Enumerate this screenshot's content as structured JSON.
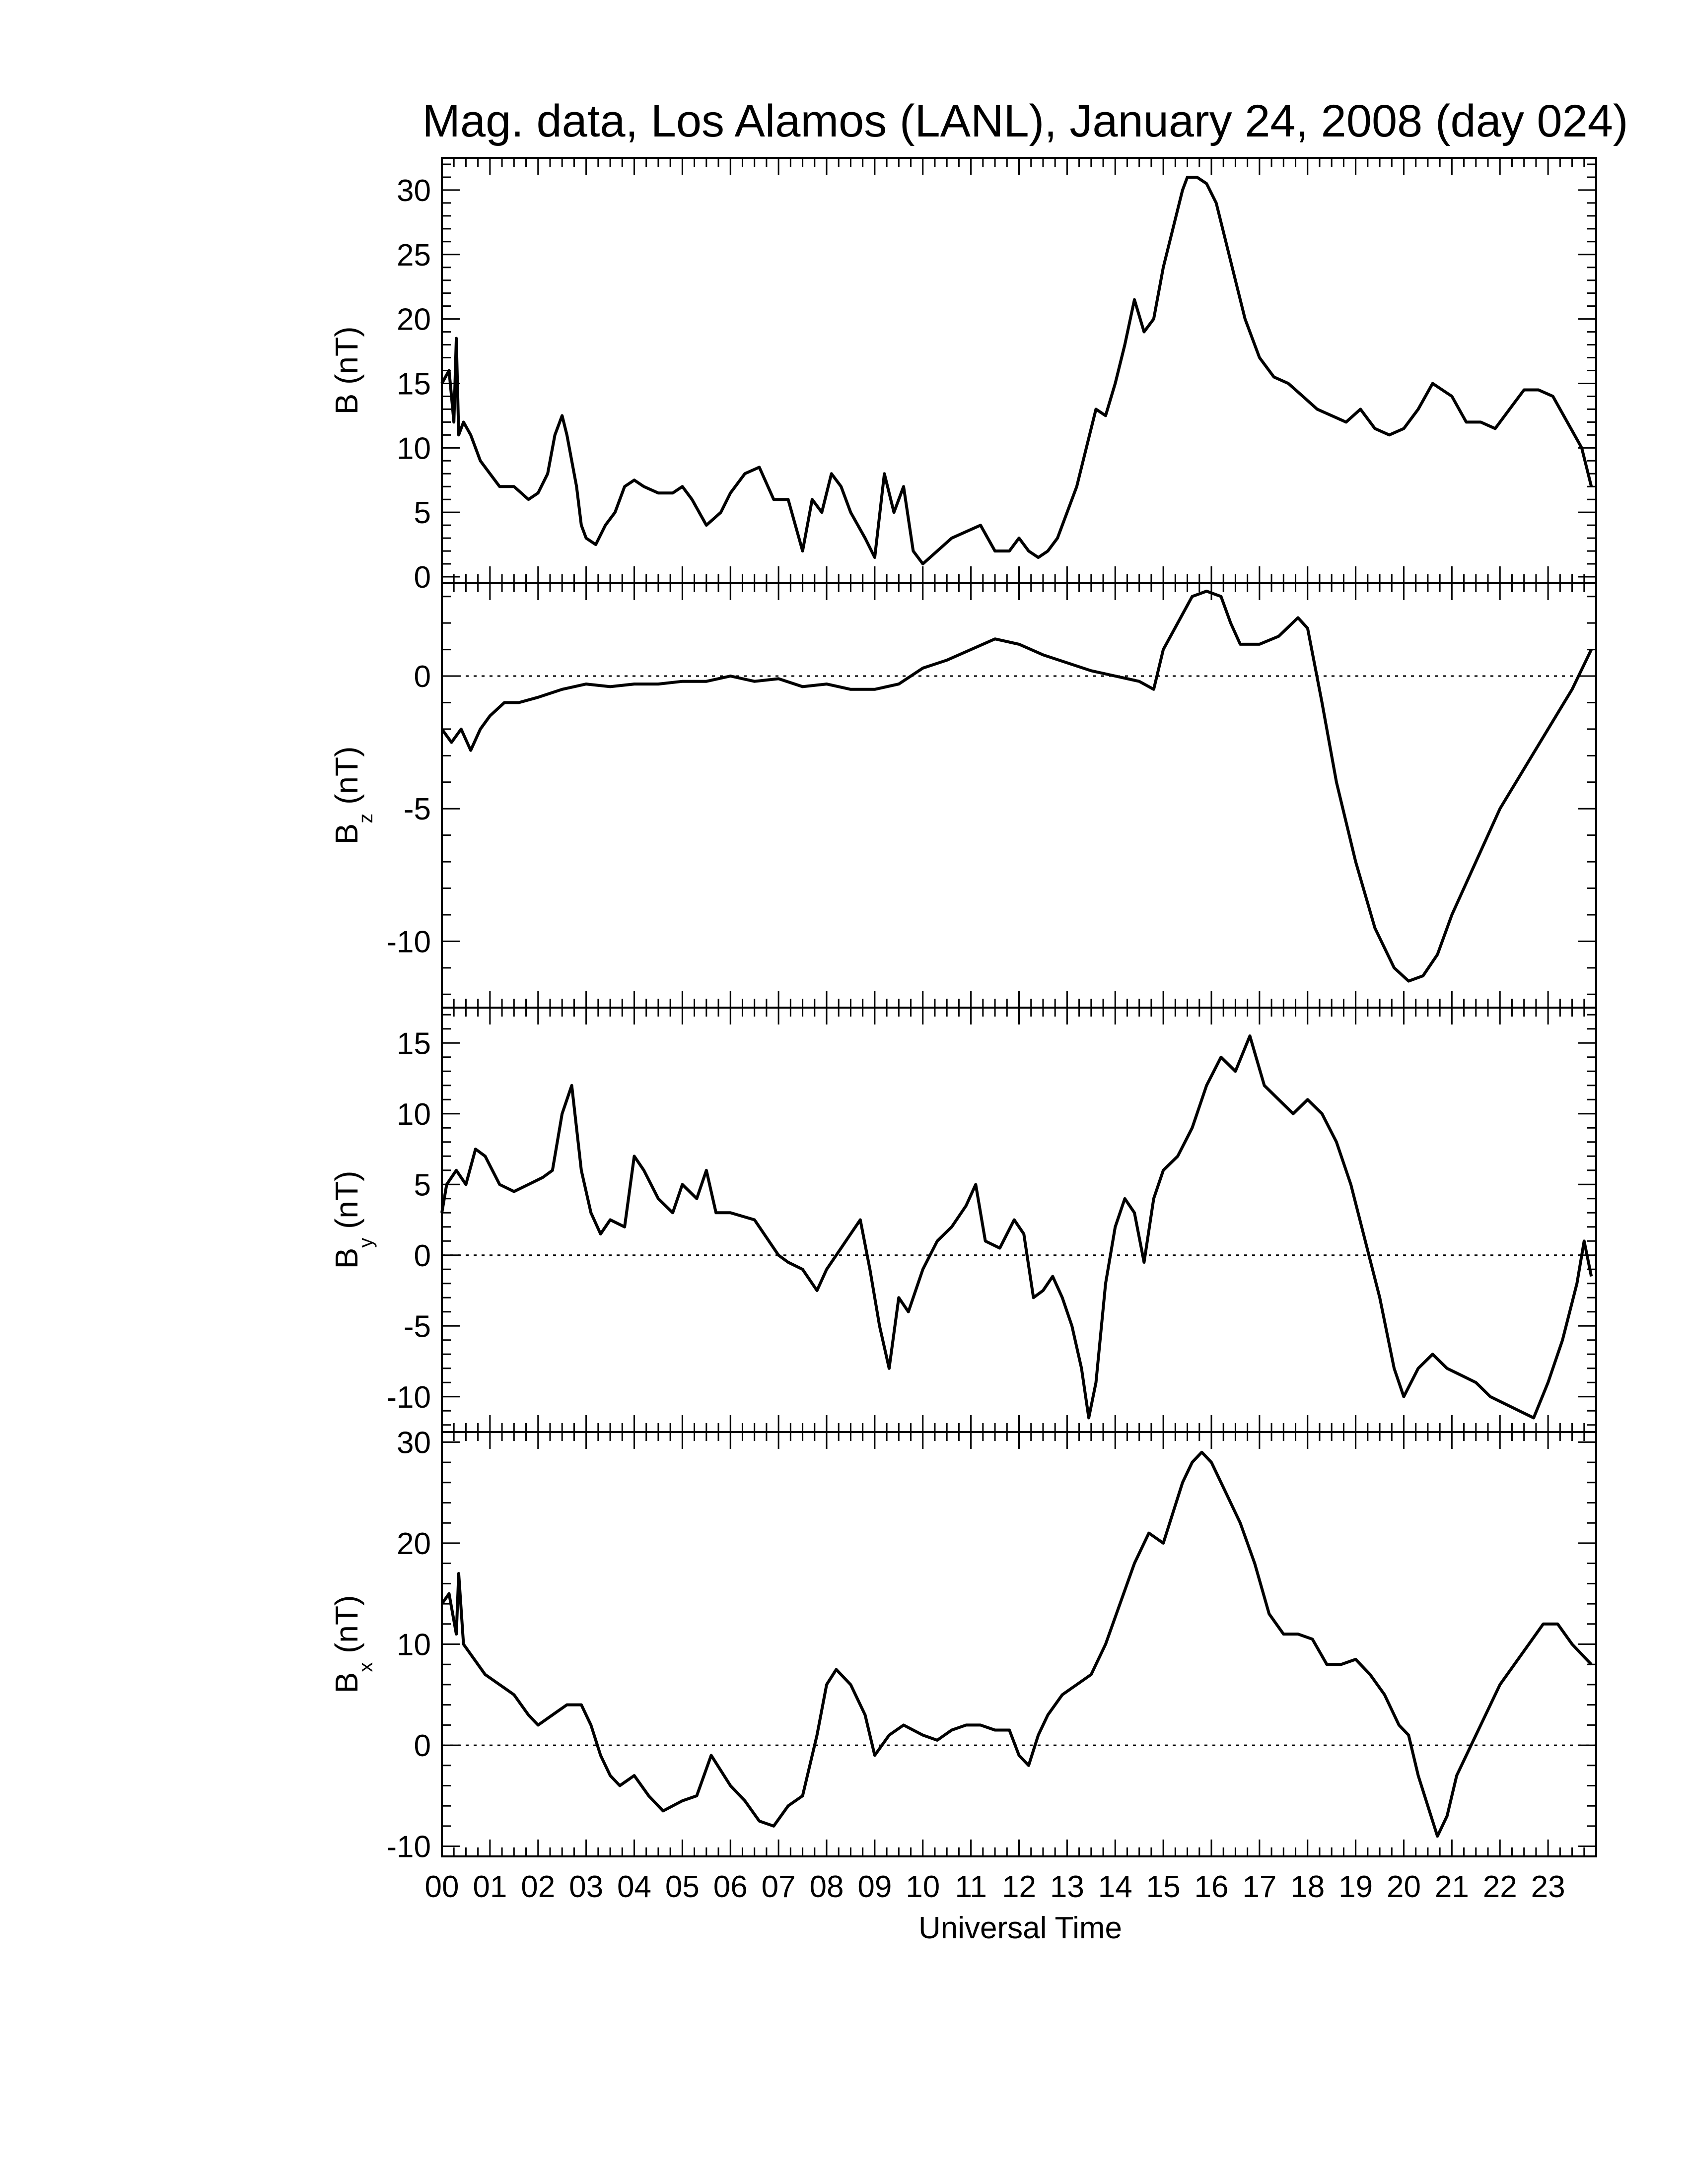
{
  "title": "Mag. data, Los Alamos (LANL), January 24, 2008 (day 024)",
  "chart_data": [
    {
      "type": "line",
      "panel": "B",
      "ylabel_main": "B",
      "ylabel_sub": "",
      "ylabel_unit": " (nT)",
      "ylim": [
        -0.5,
        32.5
      ],
      "yticks": [
        0,
        5,
        10,
        15,
        20,
        25,
        30
      ],
      "zero_line": false,
      "series": [
        {
          "x": [
            0,
            0.15,
            0.2,
            0.25,
            0.3,
            0.35,
            0.45,
            0.6,
            0.8,
            1.0,
            1.2,
            1.5,
            1.8,
            2.0,
            2.2,
            2.35,
            2.5,
            2.6,
            2.7,
            2.8,
            2.9,
            3.0,
            3.2,
            3.4,
            3.6,
            3.8,
            4.0,
            4.2,
            4.5,
            4.8,
            5.0,
            5.2,
            5.5,
            5.8,
            6.0,
            6.3,
            6.6,
            6.9,
            7.2,
            7.5,
            7.7,
            7.9,
            8.1,
            8.3,
            8.5,
            8.8,
            9.0,
            9.2,
            9.4,
            9.6,
            9.8,
            10.0,
            10.3,
            10.6,
            10.9,
            11.2,
            11.5,
            11.8,
            12.0,
            12.2,
            12.4,
            12.6,
            12.8,
            13.0,
            13.2,
            13.4,
            13.6,
            13.8,
            14.0,
            14.2,
            14.4,
            14.6,
            14.8,
            15.0,
            15.2,
            15.4,
            15.5,
            15.7,
            15.9,
            16.1,
            16.3,
            16.5,
            16.7,
            17.0,
            17.3,
            17.6,
            17.9,
            18.2,
            18.5,
            18.8,
            19.1,
            19.4,
            19.7,
            20.0,
            20.3,
            20.6,
            21.0,
            21.3,
            21.6,
            21.9,
            22.2,
            22.5,
            22.8,
            23.1,
            23.4,
            23.7,
            23.9
          ],
          "values": [
            15,
            16,
            14,
            12,
            18.5,
            11,
            12,
            11,
            9,
            8,
            7,
            7,
            6,
            6.5,
            8,
            11,
            12.5,
            11,
            9,
            7,
            4,
            3,
            2.5,
            4,
            5,
            7,
            7.5,
            7,
            6.5,
            6.5,
            7,
            6,
            4,
            5,
            6.5,
            8,
            8.5,
            6,
            6,
            2,
            6,
            5,
            8,
            7,
            5,
            3,
            1.5,
            8,
            5,
            7,
            2,
            1,
            2,
            3,
            3.5,
            4,
            2,
            2,
            3,
            2,
            1.5,
            2,
            3,
            5,
            7,
            10,
            13,
            12.5,
            15,
            18,
            21.5,
            19,
            20,
            24,
            27,
            30,
            31,
            31,
            30.5,
            29,
            26,
            23,
            20,
            17,
            15.5,
            15,
            14,
            13,
            12.5,
            12,
            13,
            11.5,
            11,
            11.5,
            13,
            15,
            14,
            12,
            12,
            11.5,
            13,
            14.5,
            14.5,
            14,
            12,
            10,
            7
          ]
        }
      ]
    },
    {
      "type": "line",
      "panel": "Bz",
      "ylabel_main": "B",
      "ylabel_sub": "z",
      "ylabel_unit": " (nT)",
      "ylim": [
        -12.5,
        3.5
      ],
      "yticks": [
        -10,
        -5,
        0
      ],
      "zero_line": true,
      "series": [
        {
          "x": [
            0,
            0.2,
            0.4,
            0.6,
            0.8,
            1.0,
            1.3,
            1.6,
            2.0,
            2.5,
            3.0,
            3.5,
            4.0,
            4.5,
            5.0,
            5.5,
            6.0,
            6.5,
            7.0,
            7.5,
            8.0,
            8.5,
            9.0,
            9.5,
            10.0,
            10.5,
            11.0,
            11.5,
            12.0,
            12.5,
            13.0,
            13.5,
            14.0,
            14.5,
            14.8,
            15.0,
            15.3,
            15.6,
            15.9,
            16.2,
            16.4,
            16.6,
            17.0,
            17.4,
            17.8,
            18.0,
            18.3,
            18.6,
            19.0,
            19.4,
            19.8,
            20.1,
            20.4,
            20.7,
            21.0,
            21.5,
            22.0,
            22.5,
            23.0,
            23.5,
            23.9
          ],
          "values": [
            -2,
            -2.5,
            -2,
            -2.8,
            -2,
            -1.5,
            -1,
            -1,
            -0.8,
            -0.5,
            -0.3,
            -0.4,
            -0.3,
            -0.3,
            -0.2,
            -0.2,
            0,
            -0.2,
            -0.1,
            -0.4,
            -0.3,
            -0.5,
            -0.5,
            -0.3,
            0.3,
            0.6,
            1.0,
            1.4,
            1.2,
            0.8,
            0.5,
            0.2,
            0,
            -0.2,
            -0.5,
            1.0,
            2.0,
            3.0,
            3.2,
            3.0,
            2.0,
            1.2,
            1.2,
            1.5,
            2.2,
            1.8,
            -1,
            -4,
            -7,
            -9.5,
            -11,
            -11.5,
            -11.3,
            -10.5,
            -9,
            -7,
            -5,
            -3.5,
            -2,
            -0.5,
            1.0
          ]
        }
      ]
    },
    {
      "type": "line",
      "panel": "By",
      "ylabel_main": "B",
      "ylabel_sub": "y",
      "ylabel_unit": " (nT)",
      "ylim": [
        -12.5,
        17.5
      ],
      "yticks": [
        -10,
        -5,
        0,
        5,
        10,
        15
      ],
      "zero_line": true,
      "series": [
        {
          "x": [
            0,
            0.1,
            0.3,
            0.5,
            0.7,
            0.9,
            1.2,
            1.5,
            1.8,
            2.1,
            2.3,
            2.5,
            2.7,
            2.9,
            3.1,
            3.3,
            3.5,
            3.8,
            4.0,
            4.2,
            4.5,
            4.8,
            5.0,
            5.3,
            5.5,
            5.7,
            6.0,
            6.5,
            7.0,
            7.2,
            7.5,
            7.8,
            8.0,
            8.2,
            8.5,
            8.7,
            8.9,
            9.1,
            9.3,
            9.5,
            9.7,
            10.0,
            10.3,
            10.6,
            10.9,
            11.1,
            11.3,
            11.6,
            11.9,
            12.1,
            12.3,
            12.5,
            12.7,
            12.9,
            13.1,
            13.3,
            13.45,
            13.6,
            13.8,
            14.0,
            14.2,
            14.4,
            14.6,
            14.8,
            15.0,
            15.3,
            15.6,
            15.9,
            16.2,
            16.5,
            16.8,
            17.1,
            17.4,
            17.7,
            18.0,
            18.3,
            18.6,
            18.9,
            19.2,
            19.5,
            19.8,
            20.0,
            20.3,
            20.6,
            20.9,
            21.2,
            21.5,
            21.8,
            22.1,
            22.4,
            22.7,
            23.0,
            23.3,
            23.6,
            23.75,
            23.9
          ],
          "values": [
            3,
            5,
            6,
            5,
            7.5,
            7,
            5,
            4.5,
            5,
            5.5,
            6,
            10,
            12,
            6,
            3,
            1.5,
            2.5,
            2,
            7,
            6,
            4,
            3,
            5,
            4,
            6,
            3,
            3,
            2.5,
            0,
            -0.5,
            -1,
            -2.5,
            -1,
            0,
            1.5,
            2.5,
            -1,
            -5,
            -8,
            -3,
            -4,
            -1,
            1,
            2,
            3.5,
            5,
            1,
            0.5,
            2.5,
            1.5,
            -3,
            -2.5,
            -1.5,
            -3,
            -5,
            -8,
            -11.5,
            -9,
            -2,
            2,
            4,
            3,
            -0.5,
            4,
            6,
            7,
            9,
            12,
            14,
            13,
            15.5,
            12,
            11,
            10,
            11,
            10,
            8,
            5,
            1,
            -3,
            -8,
            -10,
            -8,
            -7,
            -8,
            -8.5,
            -9,
            -10,
            -10.5,
            -11,
            -11.5,
            -9,
            -6,
            -2,
            1,
            -1.5
          ]
        }
      ]
    },
    {
      "type": "line",
      "panel": "Bx",
      "ylabel_main": "B",
      "ylabel_sub": "x",
      "ylabel_unit": " (nT)",
      "ylim": [
        -11,
        31
      ],
      "yticks": [
        -10,
        0,
        10,
        20,
        30
      ],
      "zero_line": true,
      "series": [
        {
          "x": [
            0,
            0.15,
            0.3,
            0.35,
            0.45,
            0.6,
            0.9,
            1.2,
            1.5,
            1.8,
            2.0,
            2.3,
            2.6,
            2.9,
            3.1,
            3.3,
            3.5,
            3.7,
            4.0,
            4.3,
            4.6,
            5.0,
            5.3,
            5.6,
            6.0,
            6.3,
            6.6,
            6.9,
            7.2,
            7.5,
            7.8,
            8.0,
            8.2,
            8.5,
            8.8,
            9.0,
            9.3,
            9.6,
            10.0,
            10.3,
            10.6,
            10.9,
            11.2,
            11.5,
            11.8,
            12.0,
            12.2,
            12.4,
            12.6,
            12.9,
            13.2,
            13.5,
            13.8,
            14.1,
            14.4,
            14.7,
            15.0,
            15.2,
            15.4,
            15.6,
            15.8,
            16.0,
            16.3,
            16.6,
            16.9,
            17.2,
            17.5,
            17.8,
            18.1,
            18.4,
            18.7,
            19.0,
            19.3,
            19.6,
            19.9,
            20.1,
            20.3,
            20.5,
            20.7,
            20.9,
            21.1,
            21.4,
            21.7,
            22.0,
            22.3,
            22.6,
            22.9,
            23.2,
            23.5,
            23.7,
            23.9
          ],
          "values": [
            14,
            15,
            11,
            17,
            10,
            9,
            7,
            6,
            5,
            3,
            2,
            3,
            4,
            4,
            2,
            -1,
            -3,
            -4,
            -3,
            -5,
            -6.5,
            -5.5,
            -5,
            -1,
            -4,
            -5.5,
            -7.5,
            -8,
            -6,
            -5,
            1,
            6,
            7.5,
            6,
            3,
            -1,
            1,
            2,
            1,
            0.5,
            1.5,
            2,
            2,
            1.5,
            1.5,
            -1,
            -2,
            1,
            3,
            5,
            6,
            7,
            10,
            14,
            18,
            21,
            20,
            23,
            26,
            28,
            29,
            28,
            25,
            22,
            18,
            13,
            11,
            11,
            10.5,
            8,
            8,
            8.5,
            7,
            5,
            2,
            1,
            -3,
            -6,
            -9,
            -7,
            -3,
            0,
            3,
            6,
            8,
            10,
            12,
            12,
            10,
            9,
            8
          ]
        }
      ]
    }
  ],
  "xaxis": {
    "label": "Universal Time",
    "xlim": [
      0,
      24
    ],
    "tick_labels": [
      "00",
      "01",
      "02",
      "03",
      "04",
      "05",
      "06",
      "07",
      "08",
      "09",
      "10",
      "11",
      "12",
      "13",
      "14",
      "15",
      "16",
      "17",
      "18",
      "19",
      "20",
      "21",
      "22",
      "23"
    ]
  },
  "style": {
    "line_color": "#000000",
    "background": "#ffffff"
  }
}
